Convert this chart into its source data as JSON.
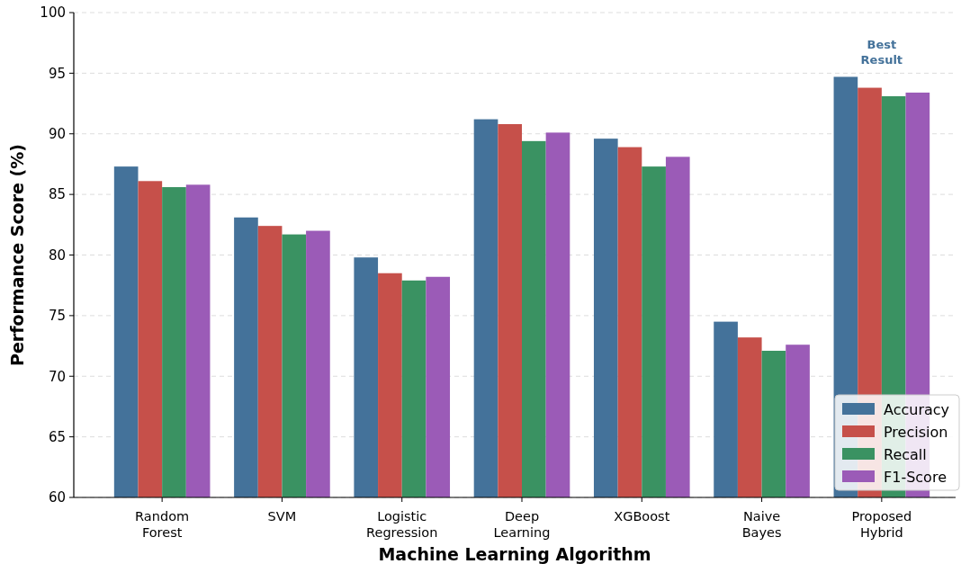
{
  "chart_data": {
    "type": "bar",
    "xlabel": "Machine Learning Algorithm",
    "ylabel": "Performance Score (%)",
    "categories": [
      "Random\nForest",
      "SVM",
      "Logistic\nRegression",
      "Deep\nLearning",
      "XGBoost",
      "Naive\nBayes",
      "Proposed\nHybrid"
    ],
    "series": [
      {
        "name": "Accuracy",
        "color": "#44729a",
        "values": [
          87.3,
          83.1,
          79.8,
          91.2,
          89.6,
          74.5,
          94.7
        ]
      },
      {
        "name": "Precision",
        "color": "#c6504a",
        "values": [
          86.1,
          82.4,
          78.5,
          90.8,
          88.9,
          73.2,
          93.8
        ]
      },
      {
        "name": "Recall",
        "color": "#3a9262",
        "values": [
          85.6,
          81.7,
          77.9,
          89.4,
          87.3,
          72.1,
          93.1
        ]
      },
      {
        "name": "F1-Score",
        "color": "#9b5bb7",
        "values": [
          85.8,
          82.0,
          78.2,
          90.1,
          88.1,
          72.6,
          93.4
        ]
      }
    ],
    "ylim": [
      60,
      100
    ],
    "yticks": [
      60,
      65,
      70,
      75,
      80,
      85,
      90,
      95,
      100
    ],
    "grid": "y",
    "legend": "bottom right",
    "annotations": [
      "Best\nResult"
    ]
  }
}
